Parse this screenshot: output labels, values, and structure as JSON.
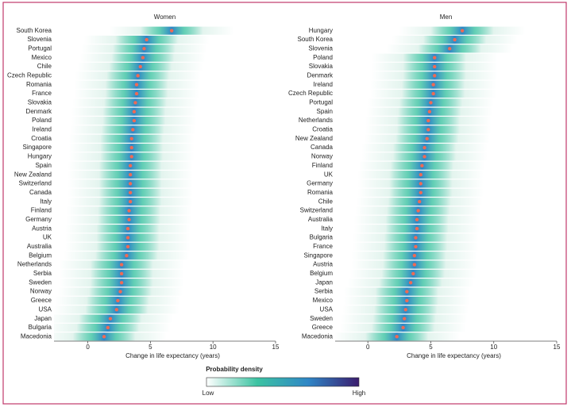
{
  "chart_data": [
    {
      "type": "density-dot",
      "title": "Women",
      "x_label": "Change in life expectancy (years)",
      "categories": [
        "South Korea",
        "Slovenia",
        "Portugal",
        "Mexico",
        "Chile",
        "Czech Republic",
        "Romania",
        "France",
        "Slovakia",
        "Denmark",
        "Poland",
        "Ireland",
        "Croatia",
        "Singapore",
        "Hungary",
        "Spain",
        "New Zealand",
        "Switzerland",
        "Canada",
        "Italy",
        "Finland",
        "Germany",
        "Austria",
        "UK",
        "Australia",
        "Belgium",
        "Netherlands",
        "Serbia",
        "Sweden",
        "Norway",
        "Greece",
        "USA",
        "Japan",
        "Bulgaria",
        "Macedonia"
      ],
      "values": [
        6.7,
        4.7,
        4.5,
        4.4,
        4.2,
        4.0,
        3.9,
        3.9,
        3.8,
        3.7,
        3.7,
        3.6,
        3.5,
        3.5,
        3.5,
        3.4,
        3.4,
        3.4,
        3.4,
        3.4,
        3.3,
        3.3,
        3.2,
        3.2,
        3.2,
        3.1,
        2.7,
        2.7,
        2.7,
        2.6,
        2.4,
        2.3,
        1.8,
        1.6,
        1.3
      ],
      "color": "#ee6a55",
      "xlim": [
        -2.7,
        15
      ],
      "xticks": [
        0,
        5,
        10,
        15
      ]
    },
    {
      "type": "density-dot",
      "title": "Men",
      "x_label": "Change in life expectancy (years)",
      "categories": [
        "Hungary",
        "South Korea",
        "Slovenia",
        "Poland",
        "Slovakia",
        "Denmark",
        "Ireland",
        "Czech Republic",
        "Portugal",
        "Spain",
        "Netherlands",
        "Croatia",
        "New Zealand",
        "Canada",
        "Norway",
        "Finland",
        "UK",
        "Germany",
        "Romania",
        "Chile",
        "Switzerland",
        "Australia",
        "Italy",
        "Bulgaria",
        "France",
        "Singapore",
        "Austria",
        "Belgium",
        "Japan",
        "Serbia",
        "Mexico",
        "USA",
        "Sweden",
        "Greece",
        "Macedonia"
      ],
      "values": [
        7.5,
        6.9,
        6.5,
        5.3,
        5.3,
        5.3,
        5.2,
        5.2,
        5.0,
        4.9,
        4.8,
        4.8,
        4.7,
        4.5,
        4.5,
        4.3,
        4.2,
        4.2,
        4.2,
        4.1,
        4.0,
        3.9,
        3.9,
        3.8,
        3.8,
        3.7,
        3.7,
        3.6,
        3.4,
        3.1,
        3.1,
        3.0,
        2.9,
        2.8,
        2.3
      ],
      "color": "#ee6a55",
      "xlim": [
        -2.6,
        15
      ],
      "xticks": [
        0,
        5,
        10,
        15
      ]
    }
  ],
  "legend": {
    "title": "Probability density",
    "low": "Low",
    "high": "High",
    "colors": [
      "#ffffff",
      "#3cc3a2",
      "#2f86c6",
      "#3b1d6e"
    ]
  }
}
